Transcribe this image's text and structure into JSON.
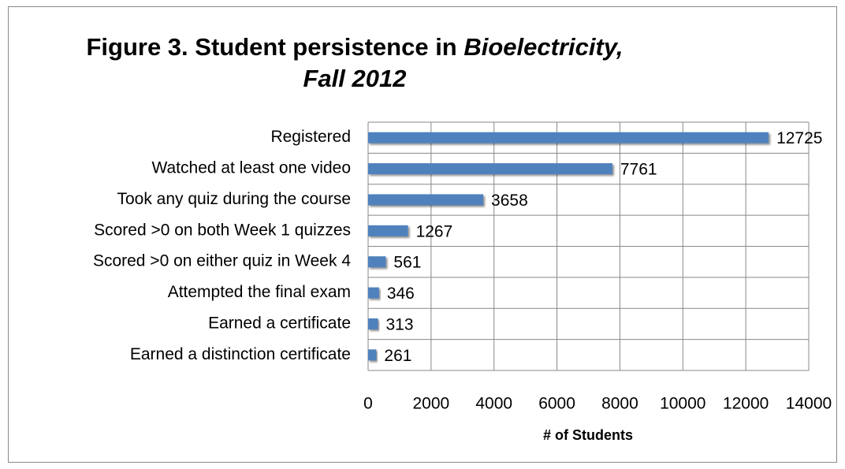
{
  "chart_data": {
    "type": "bar",
    "orientation": "horizontal",
    "title": [
      "Figure 3. Student persistence in",
      "Bioelectricity, Fall 2012"
    ],
    "xlabel": "# of Students",
    "categories": [
      "Registered",
      "Watched at least one video",
      "Took any quiz during the course",
      "Scored >0 on both Week 1 quizzes",
      "Scored >0 on either quiz in Week 4",
      "Attempted the final exam",
      "Earned a certificate",
      "Earned a distinction certificate"
    ],
    "values": [
      12725,
      7761,
      3658,
      1267,
      561,
      346,
      313,
      261
    ],
    "color": "#4f81bd",
    "xlim": [
      0,
      14000
    ],
    "xticks": [
      0,
      2000,
      4000,
      6000,
      8000,
      10000,
      12000,
      14000
    ],
    "grid": true
  }
}
